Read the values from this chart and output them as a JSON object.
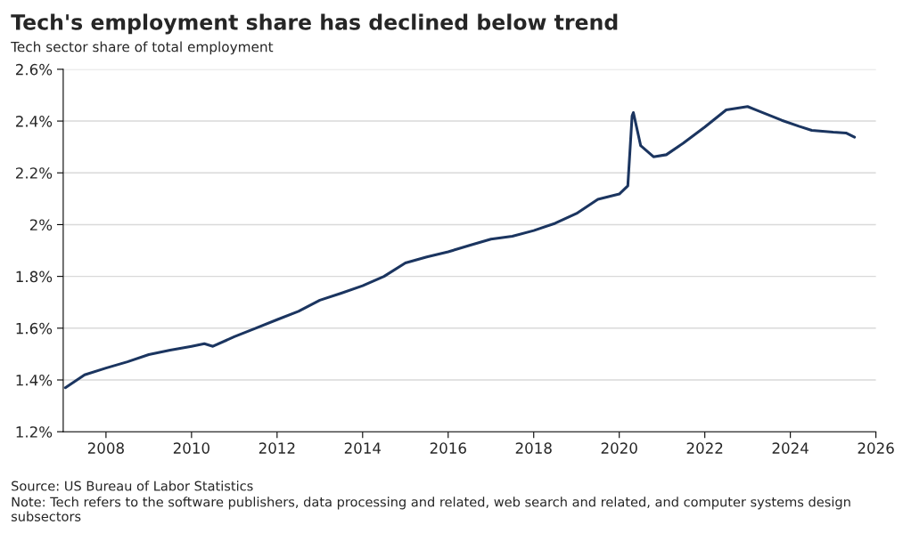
{
  "chart_data": {
    "type": "line",
    "title": "Tech's employment share has declined below trend",
    "subtitle": "Tech sector share of total employment",
    "x": [
      2007.05,
      2007.5,
      2008,
      2008.5,
      2009,
      2009.5,
      2010,
      2010.3,
      2010.5,
      2011,
      2011.5,
      2012,
      2012.5,
      2013,
      2013.5,
      2014,
      2014.5,
      2015,
      2015.5,
      2016,
      2016.5,
      2017,
      2017.5,
      2018,
      2018.5,
      2019,
      2019.5,
      2020,
      2020.2,
      2020.3,
      2020.33,
      2020.5,
      2020.8,
      2021.1,
      2021.5,
      2022,
      2022.5,
      2023,
      2023.2,
      2023.8,
      2024.2,
      2024.5,
      2025,
      2025.3,
      2025.5
    ],
    "series": [
      {
        "color": "#1b3560",
        "values": [
          1.37,
          1.42,
          1.446,
          1.47,
          1.498,
          1.515,
          1.53,
          1.54,
          1.53,
          1.567,
          1.6,
          1.633,
          1.665,
          1.708,
          1.735,
          1.764,
          1.8,
          1.852,
          1.875,
          1.895,
          1.92,
          1.944,
          1.955,
          1.977,
          2.005,
          2.043,
          2.098,
          2.118,
          2.15,
          2.42,
          2.433,
          2.305,
          2.262,
          2.27,
          2.315,
          2.377,
          2.443,
          2.456,
          2.443,
          2.403,
          2.38,
          2.364,
          2.357,
          2.354,
          2.338
        ]
      }
    ],
    "xlim": [
      2007,
      2026
    ],
    "xticks": [
      2008,
      2010,
      2012,
      2014,
      2016,
      2018,
      2020,
      2022,
      2024,
      2026
    ],
    "ylim": [
      1.2,
      2.6
    ],
    "yticks": [
      {
        "value": 1.2,
        "label": "1.2%"
      },
      {
        "value": 1.4,
        "label": "1.4%"
      },
      {
        "value": 1.6,
        "label": "1.6%"
      },
      {
        "value": 1.8,
        "label": "1.8%"
      },
      {
        "value": 2.0,
        "label": "2%"
      },
      {
        "value": 2.2,
        "label": "2.2%"
      },
      {
        "value": 2.4,
        "label": "2.4%"
      },
      {
        "value": 2.6,
        "label": "2.6%"
      }
    ],
    "grid": "y",
    "legend": false,
    "marker": "none",
    "line_style": "solid",
    "annotations": [
      "Source: US Bureau of Labor Statistics",
      "Note: Tech refers to the software publishers, data processing and related, web search and related, and computer systems design subsectors"
    ]
  }
}
